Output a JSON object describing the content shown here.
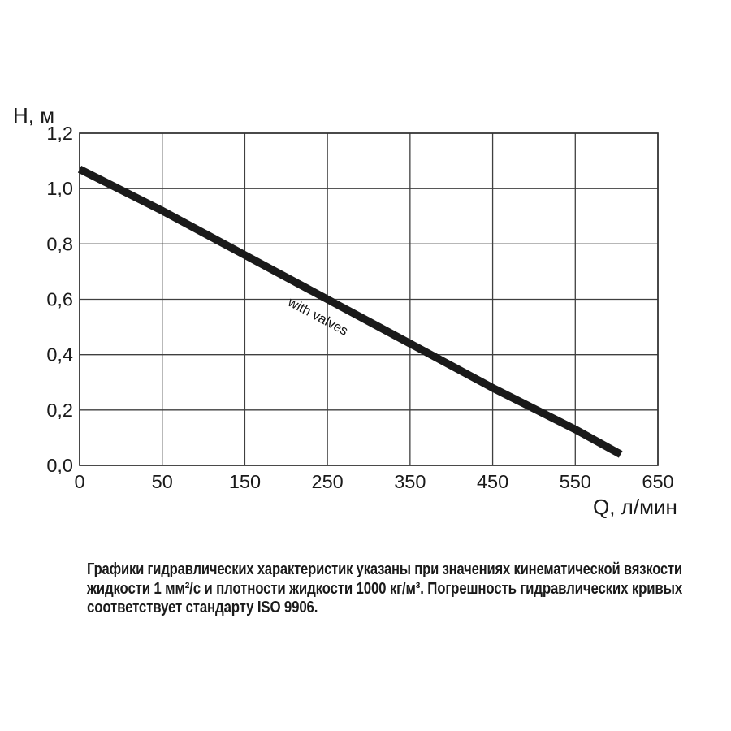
{
  "page": {
    "background": "#ffffff"
  },
  "chart_data": {
    "type": "line",
    "title": "",
    "xlabel": "Q, л/мин",
    "ylabel": "H, м",
    "x_ticks": [
      0,
      50,
      150,
      250,
      350,
      450,
      550,
      650
    ],
    "x_tick_labels": [
      "0",
      "50",
      "150",
      "250",
      "350",
      "450",
      "550",
      "650"
    ],
    "y_ticks": [
      0.0,
      0.2,
      0.4,
      0.6,
      0.8,
      1.0,
      1.2
    ],
    "y_tick_labels": [
      "0,0",
      "0,2",
      "0,4",
      "0,6",
      "0,8",
      "1,0",
      "1,2"
    ],
    "xlim": [
      0,
      650
    ],
    "ylim": [
      0,
      1.2
    ],
    "grid": true,
    "legend_position": "on-curve",
    "colors": {
      "curve": "#1a1a1a",
      "grid": "#3f3f3f",
      "border": "#333333",
      "text": "#1a1a1a"
    },
    "series": [
      {
        "name": "with valves",
        "points": [
          [
            0,
            1.07
          ],
          [
            50,
            0.92
          ],
          [
            150,
            0.76
          ],
          [
            250,
            0.6
          ],
          [
            350,
            0.44
          ],
          [
            450,
            0.28
          ],
          [
            550,
            0.13
          ],
          [
            605,
            0.04
          ]
        ],
        "stroke_width": 9.5
      }
    ],
    "annotation": {
      "text": "with valves",
      "rotation_deg": 28
    }
  },
  "caption": {
    "lines": [
      "Графики гидравлических характеристик указаны при значениях кинематической вязкости",
      "жидкости 1 мм²/с и плотности жидкости 1000 кг/м³. Погрешность гидравлических кривых",
      "соответствует стандарту ISO 9906."
    ]
  }
}
